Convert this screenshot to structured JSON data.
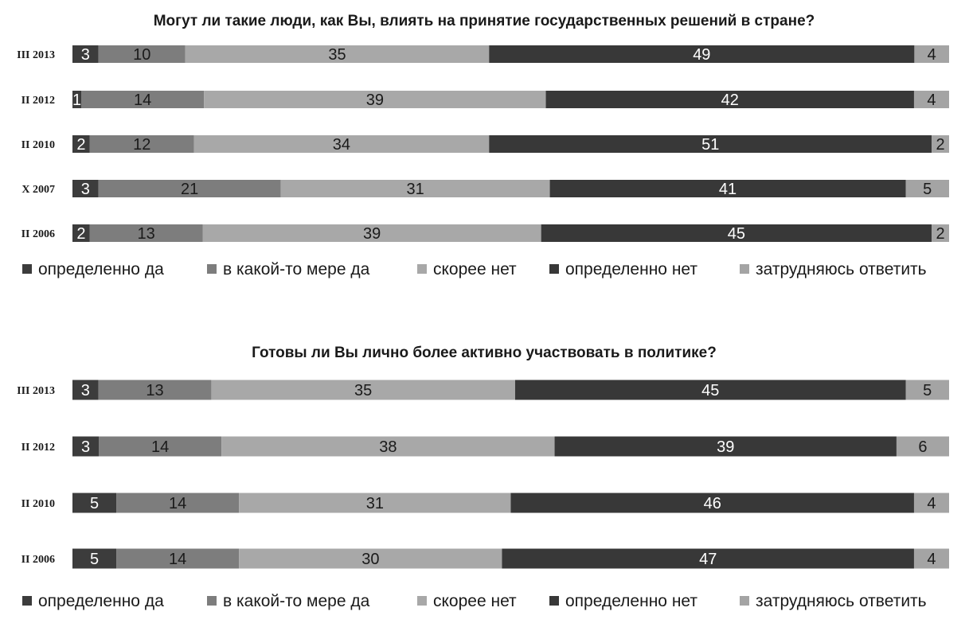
{
  "colors": {
    "definitely_yes": "#3c3c3c",
    "somewhat_yes": "#7d7d7d",
    "rather_no": "#a8a8a8",
    "definitely_no": "#383838",
    "hard_to_say": "#a4a4a4"
  },
  "chart_data": [
    {
      "type": "bar",
      "orientation": "horizontal",
      "stacked": true,
      "title": "Могут ли такие люди, как Вы, влиять на принятие государственных решений в стране?",
      "categories": [
        "III 2013",
        "II 2012",
        "II 2010",
        "X 2007",
        "II 2006"
      ],
      "series": [
        {
          "name": "определенно да",
          "values": [
            3,
            1,
            2,
            3,
            2
          ]
        },
        {
          "name": "в какой-то мере да",
          "values": [
            10,
            14,
            12,
            21,
            13
          ]
        },
        {
          "name": "скорее нет",
          "values": [
            35,
            39,
            34,
            31,
            39
          ]
        },
        {
          "name": "определенно нет",
          "values": [
            49,
            42,
            51,
            41,
            45
          ]
        },
        {
          "name": "затрудняюсь ответить",
          "values": [
            4,
            4,
            2,
            5,
            2
          ]
        }
      ],
      "legend": "bottom"
    },
    {
      "type": "bar",
      "orientation": "horizontal",
      "stacked": true,
      "title": "Готовы ли Вы лично более активно участвовать в политике?",
      "categories": [
        "III 2013",
        "II 2012",
        "II 2010",
        "II 2006"
      ],
      "series": [
        {
          "name": "определенно да",
          "values": [
            3,
            3,
            5,
            5
          ]
        },
        {
          "name": "в какой-то мере да",
          "values": [
            13,
            14,
            14,
            14
          ]
        },
        {
          "name": "скорее нет",
          "values": [
            35,
            38,
            31,
            30
          ]
        },
        {
          "name": "определенно нет",
          "values": [
            45,
            39,
            46,
            47
          ]
        },
        {
          "name": "затрудняюсь ответить",
          "values": [
            5,
            6,
            4,
            4
          ]
        }
      ],
      "legend": "bottom"
    }
  ]
}
